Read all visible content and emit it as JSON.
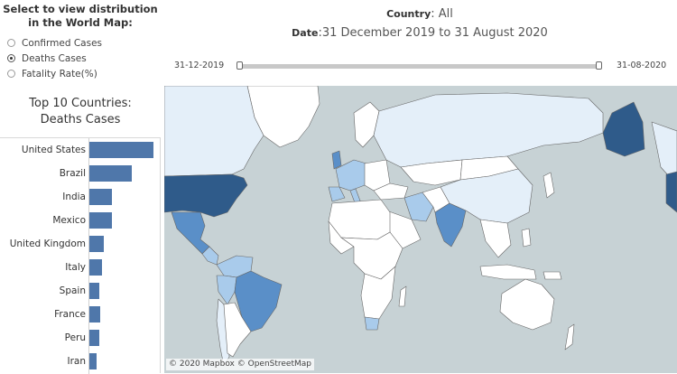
{
  "selector": {
    "title": "Select to view distribution in the World Map:",
    "options": [
      {
        "label": "Confirmed Cases",
        "checked": false
      },
      {
        "label": "Deaths Cases",
        "checked": true
      },
      {
        "label": "Fatality Rate(%)",
        "checked": false
      }
    ]
  },
  "top_title": "Top 10 Countries: Deaths Cases",
  "header": {
    "country_label": "Country",
    "country_value": "All",
    "date_label": "Date",
    "date_value": "31 December 2019 to 31 August 2020"
  },
  "slider": {
    "start_label": "31-12-2019",
    "end_label": "31-08-2020"
  },
  "map": {
    "attribution": "© 2020 Mapbox © OpenStreetMap",
    "colors": {
      "ocean": "#c7d2d5",
      "high": "#2f5b8a",
      "medium": "#5a8fc8",
      "low": "#a9cbeb",
      "lowest": "#e4eff9",
      "zero": "#ffffff"
    }
  },
  "chart_data": {
    "type": "bar",
    "orientation": "horizontal",
    "title": "Top 10 Countries: Deaths Cases",
    "categories": [
      "United States",
      "Brazil",
      "India",
      "Mexico",
      "United Kingdom",
      "Italy",
      "Spain",
      "France",
      "Peru",
      "Iran"
    ],
    "values": [
      183000,
      121000,
      65000,
      64000,
      41500,
      35500,
      29000,
      30600,
      28800,
      21500
    ],
    "color": "#4f77aa"
  }
}
